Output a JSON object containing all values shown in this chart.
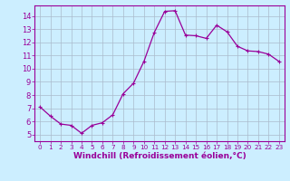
{
  "x": [
    0,
    1,
    2,
    3,
    4,
    5,
    6,
    7,
    8,
    9,
    10,
    11,
    12,
    13,
    14,
    15,
    16,
    17,
    18,
    19,
    20,
    21,
    22,
    23
  ],
  "y": [
    7.1,
    6.4,
    5.8,
    5.7,
    5.1,
    5.7,
    5.9,
    6.5,
    8.1,
    8.9,
    10.55,
    12.75,
    14.35,
    14.4,
    12.55,
    12.5,
    12.3,
    13.3,
    12.8,
    11.7,
    11.35,
    11.3,
    11.1,
    10.55
  ],
  "line_color": "#990099",
  "marker": "+",
  "marker_size": 3,
  "marker_linewidth": 0.8,
  "bg_color": "#cceeff",
  "grid_color": "#aabbcc",
  "xlabel": "Windchill (Refroidissement éolien,°C)",
  "xlabel_color": "#990099",
  "xlim": [
    -0.5,
    23.5
  ],
  "ylim": [
    4.5,
    14.8
  ],
  "yticks": [
    5,
    6,
    7,
    8,
    9,
    10,
    11,
    12,
    13,
    14
  ],
  "xticks": [
    0,
    1,
    2,
    3,
    4,
    5,
    6,
    7,
    8,
    9,
    10,
    11,
    12,
    13,
    14,
    15,
    16,
    17,
    18,
    19,
    20,
    21,
    22,
    23
  ],
  "tick_label_color": "#990099",
  "spine_color": "#990099",
  "axis_label_fontsize": 6.5,
  "tick_fontsize": 6.0,
  "xtick_fontsize": 5.2
}
